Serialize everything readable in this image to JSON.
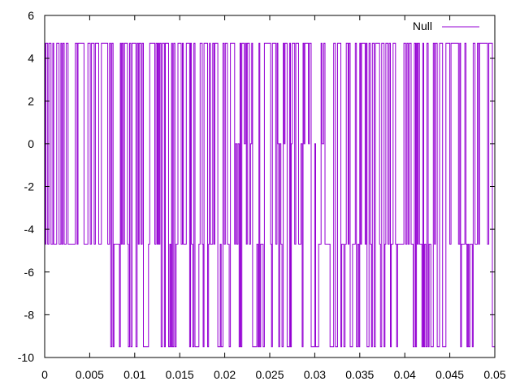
{
  "chart_data": {
    "type": "line",
    "title": "",
    "xlabel": "",
    "ylabel": "",
    "xlim": [
      0,
      0.05
    ],
    "ylim": [
      -10,
      6
    ],
    "x_ticks": [
      "0",
      "0.005",
      "0.01",
      "0.015",
      "0.02",
      "0.025",
      "0.03",
      "0.035",
      "0.04",
      "0.045",
      "0.05"
    ],
    "y_ticks": [
      "6",
      "4",
      "2",
      "0",
      "-2",
      "-4",
      "-6",
      "-8",
      "-10"
    ],
    "x_tick_values": [
      0,
      0.005,
      0.01,
      0.015,
      0.02,
      0.025,
      0.03,
      0.035,
      0.04,
      0.045,
      0.05
    ],
    "y_tick_values": [
      6,
      4,
      2,
      0,
      -2,
      -4,
      -6,
      -8,
      -10
    ],
    "grid": false,
    "legend_position": "top-right",
    "series": [
      {
        "name": "Null",
        "color": "#9400d3",
        "description_levels": [
          4.7,
          0,
          -4.7,
          -9.5
        ],
        "switching_times": [
          0,
          0.0002,
          0.0006,
          0.0009,
          0.0012,
          0.0016,
          0.0019,
          0.0023,
          0.0026,
          0.003,
          0.0034,
          0.0037,
          0.0041,
          0.0045,
          0.0048,
          0.0052,
          0.0055,
          0.0059,
          0.0062,
          0.0065,
          0.0069,
          0.0072,
          0.0076,
          0.0079,
          0.0083,
          0.0086,
          0.009,
          0.0093,
          0.0097,
          0.01,
          0.0104,
          0.0107,
          0.0111,
          0.0114,
          0.0118,
          0.0121,
          0.0125,
          0.0128,
          0.0132,
          0.0135,
          0.0139,
          0.0142,
          0.0146,
          0.0149,
          0.0153,
          0.0156,
          0.016,
          0.0163,
          0.0167,
          0.017,
          0.0174,
          0.0177,
          0.0181,
          0.0184,
          0.0188,
          0.0191,
          0.0195,
          0.0198,
          0.0202,
          0.0205,
          0.0209,
          0.0212,
          0.0216,
          0.0219,
          0.0223,
          0.0226,
          0.023,
          0.0233,
          0.0237,
          0.024,
          0.0244,
          0.0247,
          0.0251,
          0.0254,
          0.0258,
          0.0261,
          0.0265,
          0.0268,
          0.0272,
          0.0275,
          0.0279,
          0.0282,
          0.0286,
          0.0289,
          0.0293,
          0.0296,
          0.03,
          0.0303,
          0.0307,
          0.031,
          0.0314,
          0.0317,
          0.0321,
          0.0324,
          0.0328,
          0.0331,
          0.0335,
          0.0338,
          0.0342,
          0.0345,
          0.0349,
          0.0352,
          0.0356,
          0.0359,
          0.0363,
          0.0366,
          0.037,
          0.0373,
          0.0377,
          0.038,
          0.0384,
          0.0387,
          0.0391,
          0.0394,
          0.0398,
          0.0401,
          0.0405,
          0.0408,
          0.0412,
          0.0415,
          0.0419,
          0.0422,
          0.0426,
          0.0429,
          0.0433,
          0.0436,
          0.044,
          0.0443,
          0.0447,
          0.045,
          0.0454,
          0.0457,
          0.0461,
          0.0464,
          0.0468,
          0.0471,
          0.0475,
          0.0478,
          0.0482,
          0.0485,
          0.0489,
          0.0492,
          0.0496,
          0.05
        ]
      }
    ]
  }
}
